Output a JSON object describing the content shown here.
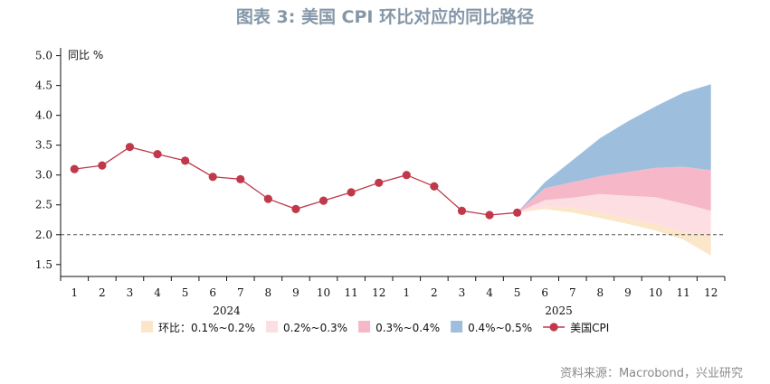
{
  "title": "图表 3:  美国 CPI 环比对应的同比路径",
  "source": "资料来源：Macrobond，兴业研究",
  "chart_data": {
    "type": "area",
    "ylabel": "同比 %",
    "ylim": [
      1.3,
      5.1
    ],
    "yticks": [
      "1.5",
      "2.0",
      "2.5",
      "3.0",
      "3.5",
      "4.0",
      "4.5",
      "5.0"
    ],
    "month_labels": [
      "1",
      "2",
      "3",
      "4",
      "5",
      "6",
      "7",
      "8",
      "9",
      "10",
      "11",
      "12",
      "1",
      "2",
      "3",
      "4",
      "5",
      "6",
      "7",
      "8",
      "9",
      "10",
      "11",
      "12"
    ],
    "year_labels": [
      "2024",
      "2025"
    ],
    "reference_line": 2.0,
    "cpi": {
      "name": "美国CPI",
      "color": "#c0394b",
      "values": [
        3.1,
        3.16,
        3.47,
        3.35,
        3.24,
        2.97,
        2.93,
        2.6,
        2.43,
        2.57,
        2.71,
        2.87,
        3.0,
        2.81,
        2.4,
        2.33,
        2.37
      ]
    },
    "bands": [
      {
        "name": "环比：0.1%~0.2%",
        "color": "#fbe6c9",
        "lower": [
          2.37,
          2.43,
          2.37,
          2.28,
          2.18,
          2.07,
          1.92,
          1.65
        ],
        "upper": [
          2.37,
          2.48,
          2.45,
          2.38,
          2.27,
          2.18,
          2.05,
          1.98
        ]
      },
      {
        "name": "0.2%~0.3%",
        "color": "#fddfe3",
        "lower": [
          2.37,
          2.48,
          2.45,
          2.38,
          2.27,
          2.18,
          2.05,
          1.98
        ],
        "upper": [
          2.37,
          2.58,
          2.62,
          2.68,
          2.65,
          2.63,
          2.52,
          2.4
        ]
      },
      {
        "name": "0.3%~0.4%",
        "color": "#f6b8c8",
        "lower": [
          2.37,
          2.58,
          2.62,
          2.68,
          2.65,
          2.63,
          2.52,
          2.4
        ],
        "upper": [
          2.37,
          2.78,
          2.88,
          2.98,
          3.05,
          3.12,
          3.14,
          3.08
        ]
      },
      {
        "name": "0.4%~0.5%",
        "color": "#9dbfdd",
        "lower": [
          2.37,
          2.78,
          2.88,
          2.98,
          3.05,
          3.12,
          3.14,
          3.08
        ],
        "upper": [
          2.37,
          2.88,
          3.25,
          3.62,
          3.9,
          4.15,
          4.38,
          4.52
        ]
      }
    ],
    "legend": [
      "环比：0.1%~0.2%",
      "0.2%~0.3%",
      "0.3%~0.4%",
      "0.4%~0.5%",
      "美国CPI"
    ]
  }
}
